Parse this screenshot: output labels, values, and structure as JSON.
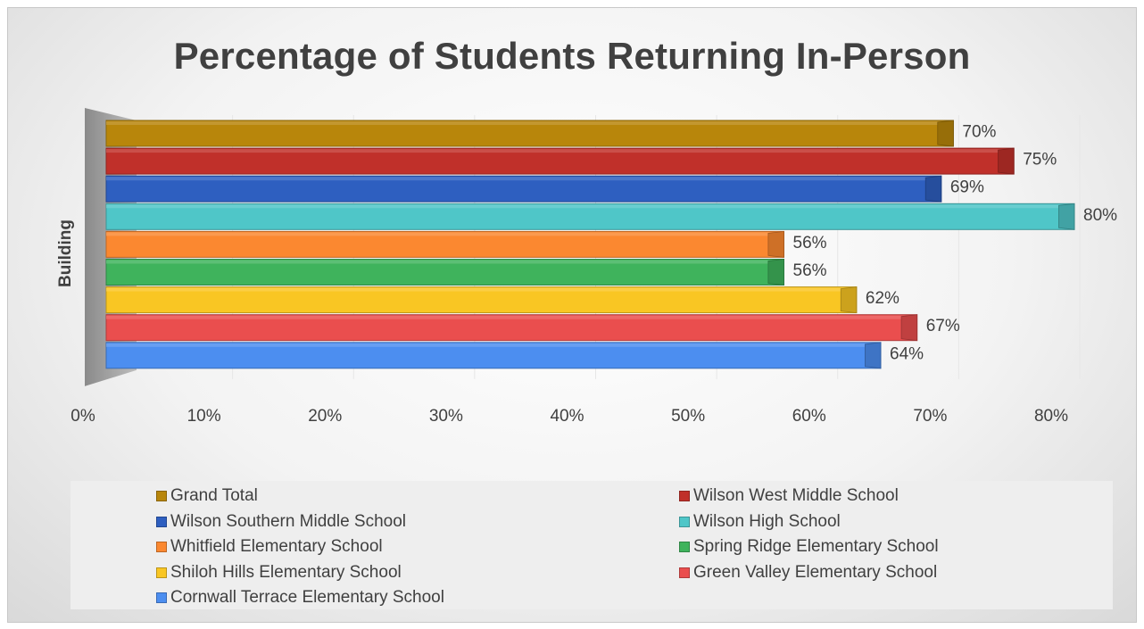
{
  "chart_data": {
    "type": "bar",
    "orientation": "horizontal",
    "title": "Percentage of Students Returning In-Person",
    "ylabel": "Building",
    "xlabel": "",
    "xlim": [
      0,
      0.8
    ],
    "x_ticks": [
      "0%",
      "10%",
      "20%",
      "30%",
      "40%",
      "50%",
      "60%",
      "70%",
      "80%"
    ],
    "x_tick_values": [
      0,
      0.1,
      0.2,
      0.3,
      0.4,
      0.5,
      0.6,
      0.7,
      0.8
    ],
    "legend_position": "bottom",
    "grid": false,
    "series": [
      {
        "name": "Grand Total",
        "value": 0.7,
        "label": "70%",
        "color": "#b8860b"
      },
      {
        "name": "Wilson West Middle School",
        "value": 0.75,
        "label": "75%",
        "color": "#c0302a"
      },
      {
        "name": "Wilson Southern Middle School",
        "value": 0.69,
        "label": "69%",
        "color": "#2e5fc0"
      },
      {
        "name": "Wilson High School",
        "value": 0.8,
        "label": "80%",
        "color": "#4fc6c8"
      },
      {
        "name": "Whitfield Elementary School",
        "value": 0.56,
        "label": "56%",
        "color": "#fb8830"
      },
      {
        "name": "Spring Ridge Elementary School",
        "value": 0.56,
        "label": "56%",
        "color": "#3fb35c"
      },
      {
        "name": "Shiloh Hills Elementary School",
        "value": 0.62,
        "label": "62%",
        "color": "#f9c623"
      },
      {
        "name": "Green Valley Elementary School",
        "value": 0.67,
        "label": "67%",
        "color": "#ea4e4e"
      },
      {
        "name": "Cornwall Terrace Elementary School",
        "value": 0.64,
        "label": "64%",
        "color": "#4c8ef0"
      }
    ]
  }
}
